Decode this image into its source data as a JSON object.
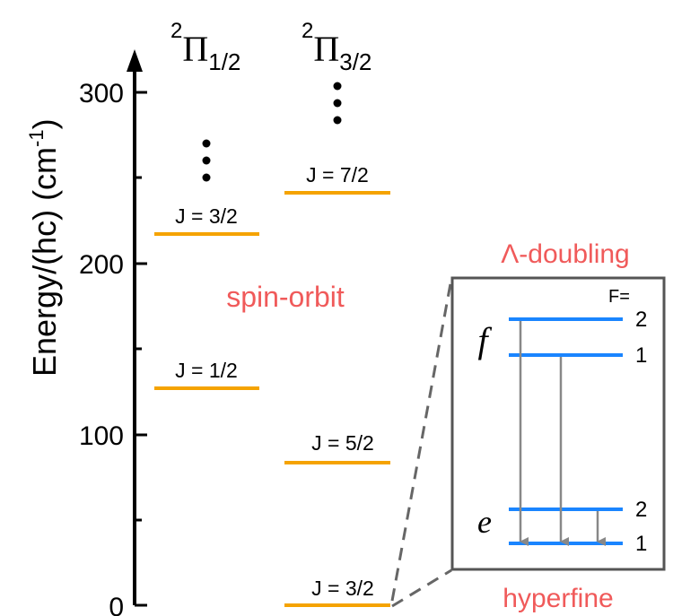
{
  "axis": {
    "label_main": "Energy/(hc) (cm",
    "label_sup": "-1",
    "label_close": ")",
    "ticks": [
      "300",
      "200",
      "100",
      "0"
    ]
  },
  "columns": {
    "left": {
      "symbol": "Π",
      "sup": "2",
      "sub": "1/2"
    },
    "right": {
      "symbol": "Π",
      "sup": "2",
      "sub": "3/2"
    }
  },
  "levels": {
    "left_j32": "J = 3/2",
    "left_j12": "J = 1/2",
    "right_j72": "J = 7/2",
    "right_j52": "J = 5/2",
    "right_j32": "J = 3/2"
  },
  "annotations": {
    "spin_orbit": "spin-orbit",
    "lambda_doubling": "Λ-doubling",
    "hyperfine": "hyperfine"
  },
  "inset": {
    "f_label": "f",
    "e_label": "e",
    "F_header": "F=",
    "f_upper": "2",
    "f_lower": "1",
    "e_upper": "2",
    "e_lower": "1"
  },
  "colors": {
    "level": "#f5a300",
    "inset_level": "#1a85ff",
    "arrow": "#888888",
    "annotation": "#f05a5a",
    "box": "#555555"
  }
}
